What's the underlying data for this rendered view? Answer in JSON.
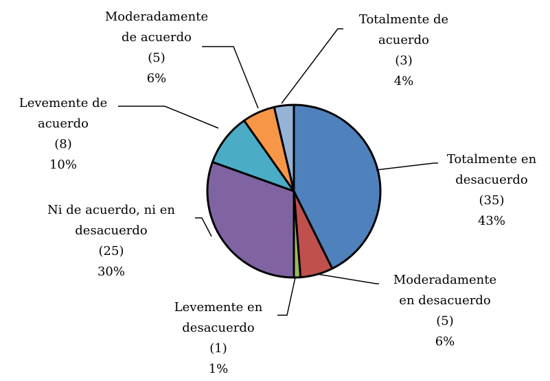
{
  "chart_data": {
    "type": "pie",
    "categories": [
      "Totalmente en desacuerdo",
      "Moderadamente en desacuerdo",
      "Levemente en desacuerdo",
      "Ni de acuerdo, ni en desacuerdo",
      "Levemente de acuerdo",
      "Moderadamente de acuerdo",
      "Totalmente de acuerdo"
    ],
    "values": [
      35,
      5,
      1,
      25,
      8,
      5,
      3
    ],
    "value_labels": [
      "(35)",
      "(5)",
      "(1)",
      "(25)",
      "(8)",
      "(5)",
      "(3)"
    ],
    "percentages": [
      43,
      6,
      1,
      30,
      10,
      6,
      4
    ],
    "percentage_labels": [
      "43%",
      "6%",
      "1%",
      "30%",
      "10%",
      "6%",
      "4%"
    ],
    "colors": [
      "#4f81bd",
      "#c0504d",
      "#9bbb59",
      "#8064a2",
      "#4bacc6",
      "#f79646",
      "#95b3d7"
    ]
  }
}
